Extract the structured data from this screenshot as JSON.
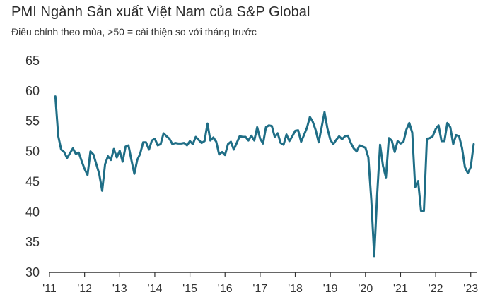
{
  "chart_data": {
    "type": "line",
    "title": "PMI Ngành Sản xuất Việt Nam của S&P Global",
    "subtitle": "Điều chỉnh theo mùa, >50 = cải thiện so với tháng trước",
    "xlabel": "",
    "ylabel": "",
    "ylim": [
      30,
      65
    ],
    "y_ticks": [
      30,
      35,
      40,
      45,
      50,
      55,
      60,
      65
    ],
    "x_range": [
      "2011-03",
      "2023-02"
    ],
    "x_tick_labels": [
      "'11",
      "'12",
      "'13",
      "'14",
      "'15",
      "'16",
      "'17",
      "'18",
      "'19",
      "'20",
      "'21",
      "'22",
      "'23"
    ],
    "gridlines": false,
    "line_color": "#1f6e86",
    "series": [
      {
        "x": [
          "2011-03",
          "2011-04",
          "2011-05",
          "2011-06",
          "2011-07",
          "2011-08",
          "2011-09",
          "2011-10",
          "2011-11",
          "2011-12",
          "2012-01",
          "2012-02",
          "2012-03",
          "2012-04",
          "2012-05",
          "2012-06",
          "2012-07",
          "2012-08",
          "2012-09",
          "2012-10",
          "2012-11",
          "2012-12",
          "2013-01",
          "2013-02",
          "2013-03",
          "2013-04",
          "2013-05",
          "2013-06",
          "2013-07",
          "2013-08",
          "2013-09",
          "2013-10",
          "2013-11",
          "2013-12",
          "2014-01",
          "2014-02",
          "2014-03",
          "2014-04",
          "2014-05",
          "2014-06",
          "2014-07",
          "2014-08",
          "2014-09",
          "2014-10",
          "2014-11",
          "2014-12",
          "2015-01",
          "2015-02",
          "2015-03",
          "2015-04",
          "2015-05",
          "2015-06",
          "2015-07",
          "2015-08",
          "2015-09",
          "2015-10",
          "2015-11",
          "2015-12",
          "2016-01",
          "2016-02",
          "2016-03",
          "2016-04",
          "2016-05",
          "2016-06",
          "2016-07",
          "2016-08",
          "2016-09",
          "2016-10",
          "2016-11",
          "2016-12",
          "2017-01",
          "2017-02",
          "2017-03",
          "2017-04",
          "2017-05",
          "2017-06",
          "2017-07",
          "2017-08",
          "2017-09",
          "2017-10",
          "2017-11",
          "2017-12",
          "2018-01",
          "2018-02",
          "2018-03",
          "2018-04",
          "2018-05",
          "2018-06",
          "2018-07",
          "2018-08",
          "2018-09",
          "2018-10",
          "2018-11",
          "2018-12",
          "2019-01",
          "2019-02",
          "2019-03",
          "2019-04",
          "2019-05",
          "2019-06",
          "2019-07",
          "2019-08",
          "2019-09",
          "2019-10",
          "2019-11",
          "2019-12",
          "2020-01",
          "2020-02",
          "2020-03",
          "2020-04",
          "2020-05",
          "2020-06",
          "2020-07",
          "2020-08",
          "2020-09",
          "2020-10",
          "2020-11",
          "2020-12",
          "2021-01",
          "2021-02",
          "2021-03",
          "2021-04",
          "2021-05",
          "2021-06",
          "2021-07",
          "2021-08",
          "2021-09",
          "2021-10",
          "2021-11",
          "2021-12",
          "2022-01",
          "2022-02",
          "2022-03",
          "2022-04",
          "2022-05",
          "2022-06",
          "2022-07",
          "2022-08",
          "2022-09",
          "2022-10",
          "2022-11",
          "2022-12",
          "2023-01",
          "2023-02"
        ],
        "values": [
          59.1,
          52.5,
          50.3,
          49.9,
          48.9,
          49.7,
          50.5,
          49.6,
          49.8,
          48.4,
          47.1,
          46.1,
          50.0,
          49.5,
          47.9,
          46.3,
          43.5,
          47.9,
          49.2,
          48.6,
          50.4,
          49.0,
          50.1,
          48.3,
          50.8,
          51.0,
          48.6,
          46.3,
          48.6,
          49.6,
          51.5,
          51.5,
          50.3,
          51.8,
          52.1,
          51.0,
          51.2,
          53.0,
          52.5,
          52.1,
          51.2,
          51.4,
          51.3,
          51.3,
          51.4,
          51.0,
          51.7,
          51.2,
          52.4,
          51.9,
          51.4,
          51.7,
          54.6,
          51.8,
          52.3,
          51.6,
          49.5,
          49.9,
          49.4,
          51.2,
          51.6,
          50.3,
          51.4,
          52.5,
          52.4,
          52.4,
          51.8,
          52.6,
          51.8,
          54.0,
          52.1,
          51.3,
          54.0,
          54.3,
          54.2,
          52.4,
          53.0,
          51.4,
          51.1,
          52.8,
          51.7,
          52.5,
          53.4,
          53.5,
          51.6,
          52.7,
          53.9,
          55.7,
          54.9,
          53.5,
          51.5,
          53.9,
          56.5,
          53.8,
          51.9,
          51.2,
          51.9,
          52.5,
          52.0,
          52.5,
          52.6,
          51.4,
          50.5,
          50.0,
          51.0,
          50.8,
          50.6,
          49.0,
          41.9,
          32.7,
          42.7,
          51.1,
          47.6,
          45.7,
          52.2,
          51.8,
          49.9,
          51.7,
          51.3,
          51.6,
          53.6,
          54.7,
          53.1,
          44.1,
          45.1,
          40.2,
          40.2,
          52.1,
          52.2,
          52.5,
          53.7,
          54.3,
          51.7,
          51.7,
          54.7,
          54.0,
          51.2,
          52.7,
          52.5,
          50.6,
          47.4,
          46.4,
          47.4,
          51.2
        ]
      }
    ]
  }
}
